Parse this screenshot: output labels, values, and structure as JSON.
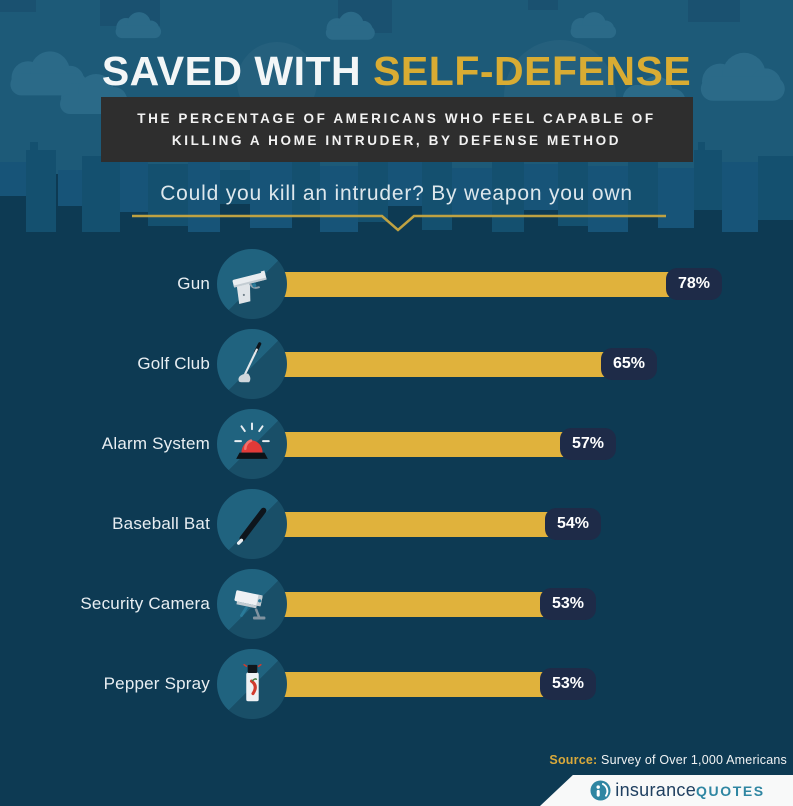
{
  "page": {
    "bg_color": "#0d3a53",
    "header_bg_color": "#1d5a78",
    "accent_gold": "#d9ac33"
  },
  "header": {
    "title_white": "SAVED WITH",
    "title_gold": "SELF-DEFENSE",
    "subtitle_line1": "THE PERCENTAGE OF AMERICANS WHO FEEL CAPABLE OF",
    "subtitle_line2": "KILLING A HOME INTRUDER, BY DEFENSE METHOD",
    "question": "Could you kill an intruder? By weapon you own"
  },
  "chart_data": {
    "type": "bar",
    "orientation": "horizontal",
    "title": "Could you kill an intruder? By weapon you own",
    "categories": [
      "Gun",
      "Golf Club",
      "Alarm System",
      "Baseball Bat",
      "Security Camera",
      "Pepper Spray"
    ],
    "values": [
      78,
      65,
      57,
      54,
      53,
      53
    ],
    "value_labels": [
      "78%",
      "65%",
      "57%",
      "54%",
      "53%",
      "53%"
    ],
    "unit": "%",
    "xlim": [
      0,
      100
    ],
    "bar_color": "#e0b23c",
    "badge_color": "#1e2b48",
    "grid": false,
    "legend": false,
    "icons": [
      "gun-icon",
      "golf-club-icon",
      "alarm-icon",
      "baseball-bat-icon",
      "security-camera-icon",
      "pepper-spray-icon"
    ]
  },
  "footer": {
    "source_label": "Source:",
    "source_text": " Survey of Over 1,000 Americans",
    "brand_first": "insurance",
    "brand_second": "quotes"
  }
}
